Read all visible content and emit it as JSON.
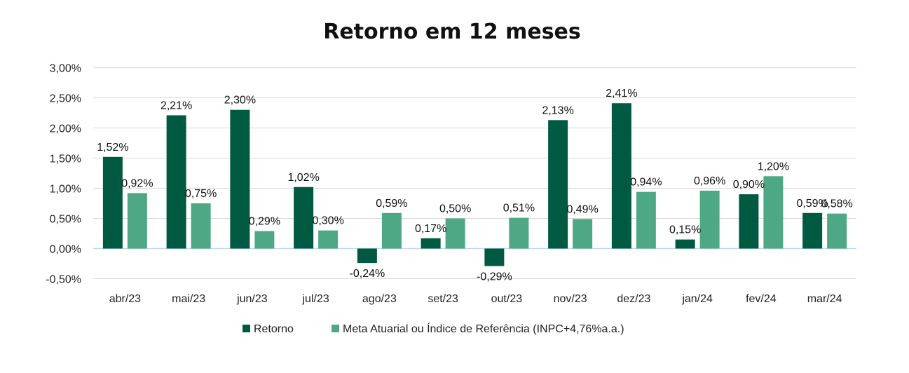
{
  "chart_data": {
    "type": "bar",
    "title": "Retorno em 12 meses",
    "xlabel": "",
    "ylabel": "",
    "categories": [
      "abr/23",
      "mai/23",
      "jun/23",
      "jul/23",
      "ago/23",
      "set/23",
      "out/23",
      "nov/23",
      "dez/23",
      "jan/24",
      "fev/24",
      "mar/24"
    ],
    "series": [
      {
        "name": "Retorno",
        "color": "#005941",
        "values": [
          1.52,
          2.21,
          2.3,
          1.02,
          -0.24,
          0.17,
          -0.29,
          2.13,
          2.41,
          0.15,
          0.9,
          0.59
        ],
        "labels": [
          "1,52%",
          "2,21%",
          "2,30%",
          "1,02%",
          "-0,24%",
          "0,17%",
          "-0,29%",
          "2,13%",
          "2,41%",
          "0,15%",
          "0,90%",
          "0,59%"
        ]
      },
      {
        "name": "Meta Atuarial ou Índice de Referência (INPC+4,76%a.a.)",
        "color": "#4ea885",
        "values": [
          0.92,
          0.75,
          0.29,
          0.3,
          0.59,
          0.5,
          0.51,
          0.49,
          0.94,
          0.96,
          1.2,
          0.58
        ],
        "labels": [
          "0,92%",
          "0,75%",
          "0,29%",
          "0,30%",
          "0,59%",
          "0,50%",
          "0,51%",
          "0,49%",
          "0,94%",
          "0,96%",
          "1,20%",
          "0,58%"
        ]
      }
    ],
    "ylim": [
      -0.5,
      3.0
    ],
    "yticks": [
      3.0,
      2.5,
      2.0,
      1.5,
      1.0,
      0.5,
      0.0,
      -0.5
    ],
    "ytick_labels": [
      "3,00%",
      "2,50%",
      "2,00%",
      "1,50%",
      "1,00%",
      "0,50%",
      "0,00%",
      "-0,50%"
    ],
    "grid": true,
    "legend_position": "bottom",
    "colors": {
      "gridline": "#d9d9d9",
      "zero_line": "#bfdbe3",
      "text": "#111111"
    }
  }
}
